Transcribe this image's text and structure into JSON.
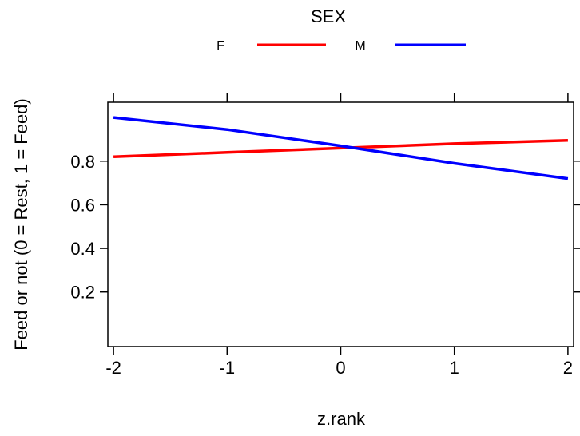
{
  "chart_data": {
    "type": "line",
    "title": "",
    "xlabel": "z.rank",
    "ylabel": "Feed or not (0 = Rest, 1 = Feed)",
    "xlim": [
      -2.05,
      2.05
    ],
    "ylim": [
      -0.05,
      1.07
    ],
    "x_ticks": [
      -2,
      -1,
      0,
      1,
      2
    ],
    "x_tick_labels": [
      "-2",
      "-1",
      "0",
      "1",
      "2"
    ],
    "y_ticks": [
      0.2,
      0.4,
      0.6,
      0.8
    ],
    "y_tick_labels": [
      "0.2",
      "0.4",
      "0.6",
      "0.8"
    ],
    "grid": false,
    "legend": {
      "title": "SEX",
      "placement": "top",
      "entries": [
        {
          "label": "F",
          "color": "#ff0000"
        },
        {
          "label": "M",
          "color": "#0000ff"
        }
      ]
    },
    "x": [
      -2,
      -1,
      0,
      1,
      2
    ],
    "series": [
      {
        "name": "F",
        "color": "#ff0000",
        "values": [
          0.82,
          0.84,
          0.86,
          0.88,
          0.895
        ]
      },
      {
        "name": "M",
        "color": "#0000ff",
        "values": [
          1.0,
          0.945,
          0.87,
          0.79,
          0.72
        ]
      }
    ]
  }
}
